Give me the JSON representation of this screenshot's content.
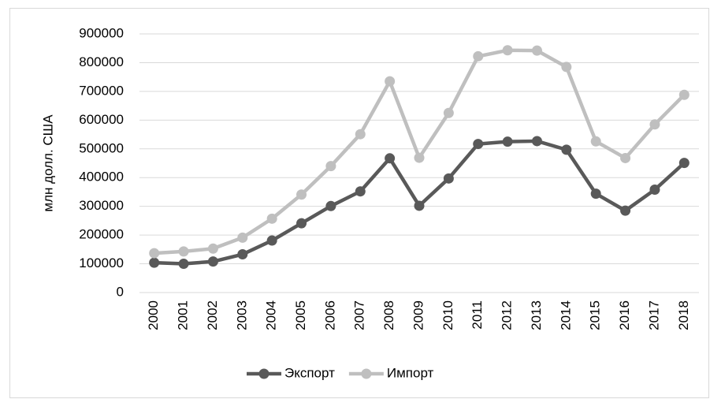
{
  "chart_data": {
    "type": "line",
    "y_label": "млн долл. США",
    "categories": [
      "2000",
      "2001",
      "2002",
      "2003",
      "2004",
      "2005",
      "2006",
      "2007",
      "2008",
      "2009",
      "2010",
      "2011",
      "2012",
      "2013",
      "2014",
      "2015",
      "2016",
      "2017",
      "2018"
    ],
    "series": [
      {
        "name": "Экспорт",
        "color": "#595959",
        "values": [
          104000,
          100000,
          108000,
          133000,
          181000,
          241000,
          301000,
          352000,
          467000,
          302000,
          397000,
          517000,
          525000,
          527000,
          497000,
          344000,
          285000,
          358000,
          451000
        ]
      },
      {
        "name": "Импорт",
        "color": "#bfbfbf",
        "values": [
          137000,
          143000,
          153000,
          191000,
          257000,
          341000,
          440000,
          551000,
          735000,
          469000,
          625000,
          822000,
          843000,
          842000,
          785000,
          526000,
          468000,
          585000,
          688000
        ]
      }
    ],
    "ylim": [
      0,
      900000
    ],
    "yticks": [
      0,
      100000,
      200000,
      300000,
      400000,
      500000,
      600000,
      700000,
      800000,
      900000
    ],
    "grid": true,
    "legend": "bottom"
  }
}
